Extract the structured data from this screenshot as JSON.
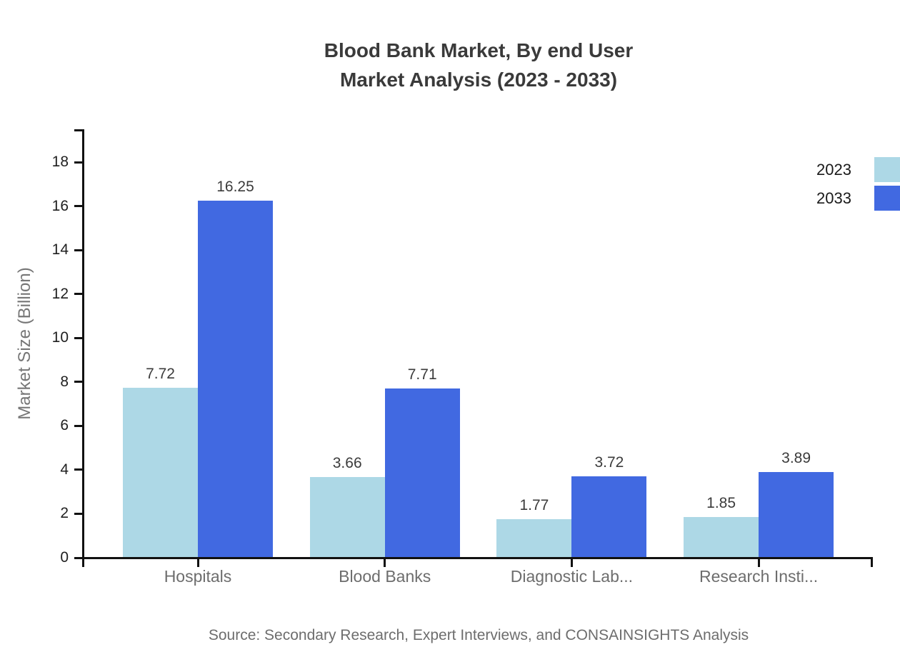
{
  "title": {
    "line1": "Blood Bank Market, By end User",
    "line2": "Market Analysis (2023 - 2033)"
  },
  "source": "Source: Secondary Research, Expert Interviews, and CONSAINSIGHTS Analysis",
  "colors": {
    "series_2023": "#ADD8E6",
    "series_2033": "#4169E1",
    "axis": "#111111",
    "title_text": "#3a3a3a",
    "muted_text": "#6d6d6d"
  },
  "chart_data": {
    "type": "bar",
    "title": "Blood Bank Market, By end User Market Analysis (2023 - 2033)",
    "categories": [
      "Hospitals",
      "Blood Banks",
      "Diagnostic Lab...",
      "Research Insti..."
    ],
    "series": [
      {
        "name": "2023",
        "color": "#ADD8E6",
        "values": [
          7.72,
          3.66,
          1.77,
          1.85
        ]
      },
      {
        "name": "2033",
        "color": "#4169E1",
        "values": [
          16.25,
          7.71,
          3.72,
          3.89
        ]
      }
    ],
    "xlabel": "",
    "ylabel": "Market Size (Billion)",
    "ylim": [
      0,
      19.5
    ],
    "yticks": [
      0,
      2,
      4,
      6,
      8,
      10,
      12,
      14,
      16,
      18
    ],
    "grid": false,
    "value_labels": true,
    "legend_position": "top-right"
  }
}
